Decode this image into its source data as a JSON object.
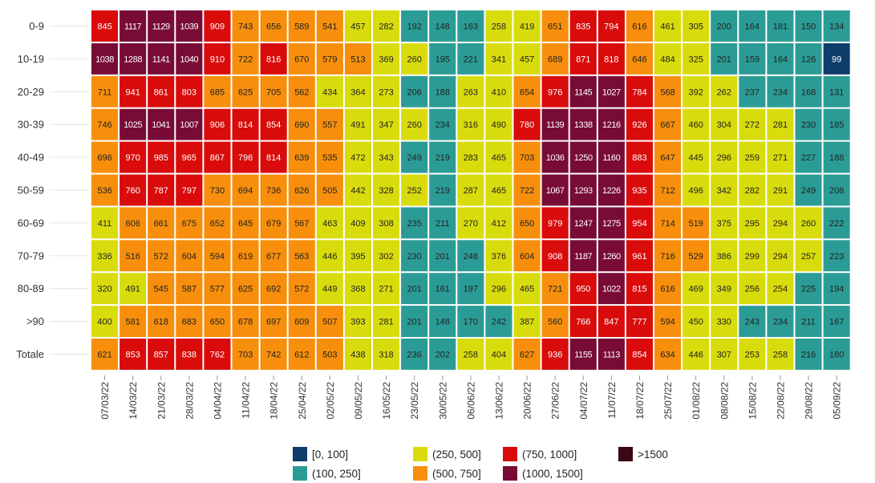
{
  "chart_data": {
    "type": "heatmap",
    "rows": [
      "0-9",
      "10-19",
      "20-29",
      "30-39",
      "40-49",
      "50-59",
      "60-69",
      "70-79",
      "80-89",
      ">90",
      "Totale"
    ],
    "columns": [
      "07/03/22",
      "14/03/22",
      "21/03/22",
      "28/03/22",
      "04/04/22",
      "11/04/22",
      "18/04/22",
      "25/04/22",
      "02/05/22",
      "09/05/22",
      "16/05/22",
      "23/05/22",
      "30/05/22",
      "06/06/22",
      "13/06/22",
      "20/06/22",
      "27/06/22",
      "04/07/22",
      "11/07/22",
      "18/07/22",
      "25/07/22",
      "01/08/22",
      "08/08/22",
      "15/08/22",
      "22/08/22",
      "29/08/22",
      "05/09/22"
    ],
    "values": [
      [
        845,
        1117,
        1129,
        1039,
        909,
        743,
        656,
        589,
        541,
        457,
        282,
        192,
        148,
        163,
        258,
        419,
        651,
        835,
        794,
        616,
        461,
        305,
        200,
        164,
        181,
        150,
        134
      ],
      [
        1038,
        1288,
        1141,
        1040,
        910,
        722,
        816,
        670,
        579,
        513,
        369,
        260,
        195,
        221,
        341,
        457,
        689,
        871,
        818,
        646,
        484,
        325,
        201,
        159,
        164,
        126,
        99
      ],
      [
        711,
        941,
        861,
        803,
        685,
        625,
        705,
        562,
        434,
        364,
        273,
        206,
        188,
        263,
        410,
        654,
        976,
        1145,
        1027,
        784,
        568,
        392,
        262,
        237,
        234,
        168,
        131
      ],
      [
        746,
        1025,
        1041,
        1007,
        906,
        814,
        854,
        690,
        557,
        491,
        347,
        260,
        234,
        316,
        490,
        780,
        1139,
        1338,
        1216,
        926,
        667,
        460,
        304,
        272,
        281,
        230,
        185
      ],
      [
        696,
        970,
        985,
        965,
        867,
        796,
        814,
        639,
        535,
        472,
        343,
        249,
        219,
        283,
        465,
        703,
        1036,
        1250,
        1160,
        883,
        647,
        445,
        296,
        259,
        271,
        227,
        188
      ],
      [
        536,
        760,
        787,
        797,
        730,
        694,
        736,
        626,
        505,
        442,
        328,
        252,
        219,
        287,
        465,
        722,
        1067,
        1293,
        1226,
        935,
        712,
        496,
        342,
        282,
        291,
        249,
        208
      ],
      [
        411,
        606,
        661,
        675,
        652,
        645,
        679,
        567,
        463,
        409,
        308,
        235,
        211,
        270,
        412,
        650,
        979,
        1247,
        1275,
        954,
        714,
        519,
        375,
        295,
        294,
        260,
        222
      ],
      [
        336,
        516,
        572,
        604,
        594,
        619,
        677,
        563,
        446,
        395,
        302,
        230,
        201,
        248,
        376,
        604,
        908,
        1187,
        1260,
        961,
        716,
        529,
        386,
        299,
        294,
        257,
        223
      ],
      [
        320,
        491,
        545,
        587,
        577,
        625,
        692,
        572,
        449,
        368,
        271,
        201,
        161,
        197,
        296,
        465,
        721,
        950,
        1022,
        815,
        616,
        469,
        349,
        256,
        254,
        225,
        194
      ],
      [
        400,
        581,
        618,
        683,
        650,
        678,
        697,
        609,
        507,
        393,
        281,
        201,
        148,
        170,
        242,
        387,
        560,
        766,
        847,
        777,
        594,
        450,
        330,
        243,
        234,
        211,
        167
      ],
      [
        621,
        853,
        857,
        838,
        762,
        703,
        742,
        612,
        503,
        438,
        318,
        236,
        202,
        258,
        404,
        627,
        936,
        1155,
        1113,
        854,
        634,
        446,
        307,
        253,
        258,
        216,
        180
      ]
    ],
    "bins": [
      {
        "label": "[0, 100]",
        "min": 0,
        "max": 100,
        "color": "#0e3d6b",
        "text": "#ffffff"
      },
      {
        "label": "(100, 250]",
        "min": 100,
        "max": 250,
        "color": "#2b9c95",
        "text": "#222222"
      },
      {
        "label": "(250, 500]",
        "min": 250,
        "max": 500,
        "color": "#d9dc0c",
        "text": "#222222"
      },
      {
        "label": "(500, 750]",
        "min": 500,
        "max": 750,
        "color": "#f78f0c",
        "text": "#222222"
      },
      {
        "label": "(750, 1000]",
        "min": 750,
        "max": 1000,
        "color": "#d90b0b",
        "text": "#ffffff"
      },
      {
        "label": "(1000, 1500]",
        "min": 1000,
        "max": 1500,
        "color": "#780c36",
        "text": "#ffffff"
      },
      {
        "label": ">1500",
        "min": 1500,
        "max": null,
        "color": "#3a0812",
        "text": "#ffffff"
      }
    ],
    "legend_position": "bottom",
    "grid": false
  }
}
